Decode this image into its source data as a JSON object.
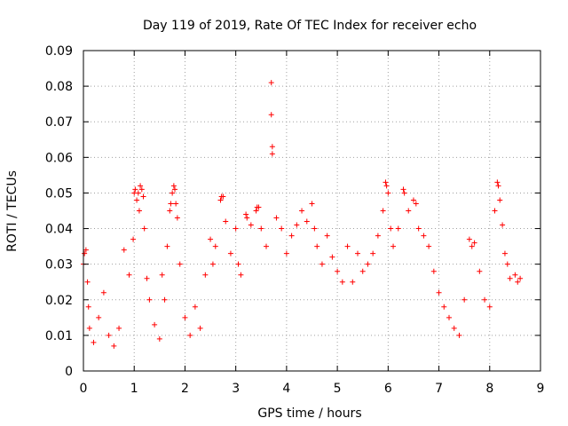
{
  "chart_data": {
    "type": "scatter",
    "title": "Day 119 of 2019, Rate Of TEC Index for receiver echo",
    "xlabel": "GPS time / hours",
    "ylabel": "ROTI / TECUs",
    "xlim": [
      0,
      9
    ],
    "ylim": [
      0,
      0.09
    ],
    "x_ticks": [
      "0",
      "1",
      "2",
      "3",
      "4",
      "5",
      "6",
      "7",
      "8",
      "9"
    ],
    "y_ticks": [
      "0",
      "0.01",
      "0.02",
      "0.03",
      "0.04",
      "0.05",
      "0.06",
      "0.07",
      "0.08",
      "0.09"
    ],
    "grid": true,
    "marker": "+",
    "color": "#ff0000",
    "series": [
      {
        "name": "ROTI",
        "points": [
          [
            0.0,
            0.03
          ],
          [
            0.02,
            0.033
          ],
          [
            0.05,
            0.034
          ],
          [
            0.08,
            0.025
          ],
          [
            0.1,
            0.018
          ],
          [
            0.12,
            0.012
          ],
          [
            0.2,
            0.008
          ],
          [
            0.3,
            0.015
          ],
          [
            0.4,
            0.022
          ],
          [
            0.5,
            0.01
          ],
          [
            0.6,
            0.007
          ],
          [
            0.7,
            0.012
          ],
          [
            0.8,
            0.034
          ],
          [
            0.9,
            0.027
          ],
          [
            0.98,
            0.037
          ],
          [
            1.0,
            0.05
          ],
          [
            1.02,
            0.051
          ],
          [
            1.05,
            0.048
          ],
          [
            1.08,
            0.05
          ],
          [
            1.1,
            0.045
          ],
          [
            1.12,
            0.052
          ],
          [
            1.15,
            0.051
          ],
          [
            1.18,
            0.049
          ],
          [
            1.2,
            0.04
          ],
          [
            1.25,
            0.026
          ],
          [
            1.3,
            0.02
          ],
          [
            1.4,
            0.013
          ],
          [
            1.5,
            0.009
          ],
          [
            1.55,
            0.027
          ],
          [
            1.6,
            0.02
          ],
          [
            1.65,
            0.035
          ],
          [
            1.7,
            0.045
          ],
          [
            1.72,
            0.047
          ],
          [
            1.75,
            0.05
          ],
          [
            1.78,
            0.052
          ],
          [
            1.8,
            0.051
          ],
          [
            1.82,
            0.047
          ],
          [
            1.85,
            0.043
          ],
          [
            1.9,
            0.03
          ],
          [
            2.0,
            0.015
          ],
          [
            2.1,
            0.01
          ],
          [
            2.2,
            0.018
          ],
          [
            2.3,
            0.012
          ],
          [
            2.4,
            0.027
          ],
          [
            2.5,
            0.037
          ],
          [
            2.55,
            0.03
          ],
          [
            2.6,
            0.035
          ],
          [
            2.7,
            0.048
          ],
          [
            2.72,
            0.049
          ],
          [
            2.75,
            0.049
          ],
          [
            2.8,
            0.042
          ],
          [
            2.9,
            0.033
          ],
          [
            3.0,
            0.04
          ],
          [
            3.05,
            0.03
          ],
          [
            3.1,
            0.027
          ],
          [
            3.2,
            0.044
          ],
          [
            3.22,
            0.043
          ],
          [
            3.3,
            0.041
          ],
          [
            3.4,
            0.045
          ],
          [
            3.42,
            0.046
          ],
          [
            3.45,
            0.046
          ],
          [
            3.5,
            0.04
          ],
          [
            3.6,
            0.035
          ],
          [
            3.7,
            0.081
          ],
          [
            3.7,
            0.072
          ],
          [
            3.72,
            0.063
          ],
          [
            3.72,
            0.061
          ],
          [
            3.8,
            0.043
          ],
          [
            3.9,
            0.04
          ],
          [
            4.0,
            0.033
          ],
          [
            4.1,
            0.038
          ],
          [
            4.2,
            0.041
          ],
          [
            4.3,
            0.045
          ],
          [
            4.4,
            0.042
          ],
          [
            4.5,
            0.047
          ],
          [
            4.55,
            0.04
          ],
          [
            4.6,
            0.035
          ],
          [
            4.7,
            0.03
          ],
          [
            4.8,
            0.038
          ],
          [
            4.9,
            0.032
          ],
          [
            5.0,
            0.028
          ],
          [
            5.1,
            0.025
          ],
          [
            5.2,
            0.035
          ],
          [
            5.3,
            0.025
          ],
          [
            5.4,
            0.033
          ],
          [
            5.5,
            0.028
          ],
          [
            5.6,
            0.03
          ],
          [
            5.7,
            0.033
          ],
          [
            5.8,
            0.038
          ],
          [
            5.9,
            0.045
          ],
          [
            5.95,
            0.053
          ],
          [
            5.97,
            0.052
          ],
          [
            6.0,
            0.05
          ],
          [
            6.05,
            0.04
          ],
          [
            6.1,
            0.035
          ],
          [
            6.2,
            0.04
          ],
          [
            6.3,
            0.051
          ],
          [
            6.32,
            0.05
          ],
          [
            6.4,
            0.045
          ],
          [
            6.5,
            0.048
          ],
          [
            6.55,
            0.047
          ],
          [
            6.6,
            0.04
          ],
          [
            6.7,
            0.038
          ],
          [
            6.8,
            0.035
          ],
          [
            6.9,
            0.028
          ],
          [
            7.0,
            0.022
          ],
          [
            7.1,
            0.018
          ],
          [
            7.2,
            0.015
          ],
          [
            7.3,
            0.012
          ],
          [
            7.4,
            0.01
          ],
          [
            7.5,
            0.02
          ],
          [
            7.6,
            0.037
          ],
          [
            7.65,
            0.035
          ],
          [
            7.7,
            0.036
          ],
          [
            7.8,
            0.028
          ],
          [
            7.9,
            0.02
          ],
          [
            8.0,
            0.018
          ],
          [
            8.1,
            0.045
          ],
          [
            8.15,
            0.053
          ],
          [
            8.17,
            0.052
          ],
          [
            8.2,
            0.048
          ],
          [
            8.25,
            0.041
          ],
          [
            8.3,
            0.033
          ],
          [
            8.35,
            0.03
          ],
          [
            8.4,
            0.026
          ],
          [
            8.5,
            0.027
          ],
          [
            8.55,
            0.025
          ],
          [
            8.6,
            0.026
          ]
        ]
      }
    ]
  }
}
